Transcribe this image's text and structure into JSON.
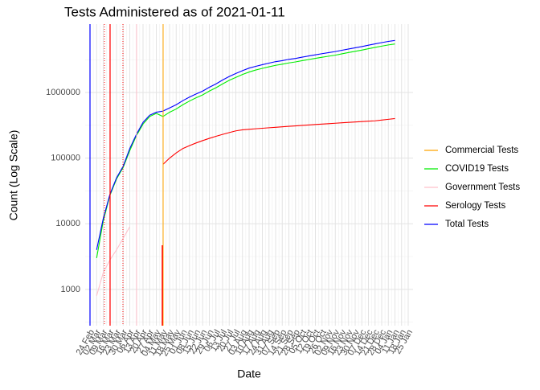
{
  "chart_data": {
    "type": "line",
    "title": "Tests Administered as of 2021-01-11",
    "x_label": "Date",
    "y_label": "Count (Log Scale)",
    "log_y": true,
    "grid": true,
    "categories": [
      "24 Feb",
      "02 Mar",
      "09 Mar",
      "16 Mar",
      "23 Mar",
      "30 Mar",
      "06 Apr",
      "13 Apr",
      "20 Apr",
      "27 Apr",
      "04 May",
      "11 May",
      "18 May",
      "25 May",
      "01 Jun",
      "08 Jun",
      "15 Jun",
      "22 Jun",
      "29 Jun",
      "06 Jul",
      "13 Jul",
      "20 Jul",
      "27 Jul",
      "03 Aug",
      "10 Aug",
      "17 Aug",
      "24 Aug",
      "31 Aug",
      "07 Sep",
      "14 Sep",
      "21 Sep",
      "28 Sep",
      "05 Oct",
      "12 Oct",
      "19 Oct",
      "26 Oct",
      "02 Nov",
      "09 Nov",
      "16 Nov",
      "23 Nov",
      "30 Nov",
      "07 Dec",
      "14 Dec",
      "21 Dec",
      "28 Dec",
      "04 Jan",
      "11 Jan",
      "18 Jan",
      "25 Jan"
    ],
    "ylim": [
      280,
      11000000
    ],
    "yticks": [
      1000,
      10000,
      100000,
      1000000
    ],
    "series": [
      {
        "name": "Commercial Tests",
        "color": "orange",
        "values": [
          null,
          null,
          null,
          null,
          null,
          null,
          null,
          null,
          null,
          null,
          null,
          null,
          null,
          null,
          null,
          null,
          null,
          null,
          null,
          null,
          null,
          null,
          null,
          null,
          null,
          null,
          null,
          null,
          null,
          null,
          null,
          null,
          null,
          null,
          null,
          null,
          null,
          null,
          null,
          null,
          null,
          null,
          null,
          null,
          null,
          null,
          null,
          null,
          null
        ]
      },
      {
        "name": "COVID19 Tests",
        "color": "#00ee00",
        "values": [
          null,
          3000,
          11000,
          27000,
          48000,
          72000,
          130000,
          220000,
          330000,
          430000,
          480000,
          430000,
          500000,
          560000,
          650000,
          740000,
          830000,
          920000,
          1050000,
          1180000,
          1350000,
          1530000,
          1700000,
          1880000,
          2050000,
          2200000,
          2330000,
          2460000,
          2590000,
          2700000,
          2820000,
          2920000,
          3050000,
          3180000,
          3310000,
          3440000,
          3570000,
          3700000,
          3880000,
          4060000,
          4240000,
          4420000,
          4640000,
          4860000,
          5080000,
          5300000,
          5480000,
          null,
          null
        ]
      },
      {
        "name": "Government Tests",
        "color": "pink",
        "values": [
          null,
          800,
          1800,
          2800,
          4000,
          6000,
          9000,
          null,
          null,
          null,
          null,
          null,
          null,
          null,
          null,
          null,
          null,
          null,
          null,
          null,
          null,
          null,
          null,
          null,
          null,
          null,
          null,
          null,
          null,
          null,
          null,
          null,
          null,
          null,
          null,
          null,
          null,
          null,
          null,
          null,
          null,
          null,
          null,
          null,
          null,
          null,
          null,
          null,
          null
        ]
      },
      {
        "name": "Serology Tests",
        "color": "red",
        "values": [
          null,
          null,
          null,
          null,
          null,
          null,
          null,
          null,
          null,
          null,
          null,
          80000,
          100000,
          120000,
          140000,
          155000,
          170000,
          185000,
          200000,
          215000,
          230000,
          245000,
          260000,
          270000,
          275000,
          280000,
          285000,
          290000,
          295000,
          300000,
          305000,
          310000,
          315000,
          320000,
          325000,
          330000,
          335000,
          340000,
          345000,
          350000,
          355000,
          360000,
          365000,
          370000,
          380000,
          390000,
          400000,
          null,
          null
        ]
      },
      {
        "name": "Total Tests",
        "color": "blue",
        "values": [
          null,
          4000,
          12000,
          28000,
          50000,
          75000,
          140000,
          230000,
          350000,
          450000,
          500000,
          520000,
          580000,
          650000,
          750000,
          850000,
          950000,
          1050000,
          1200000,
          1350000,
          1550000,
          1750000,
          1950000,
          2150000,
          2350000,
          2500000,
          2650000,
          2800000,
          2950000,
          3050000,
          3200000,
          3300000,
          3450000,
          3600000,
          3750000,
          3900000,
          4050000,
          4200000,
          4400000,
          4600000,
          4800000,
          5000000,
          5250000,
          5500000,
          5750000,
          6000000,
          6200000,
          null,
          null
        ]
      }
    ]
  }
}
